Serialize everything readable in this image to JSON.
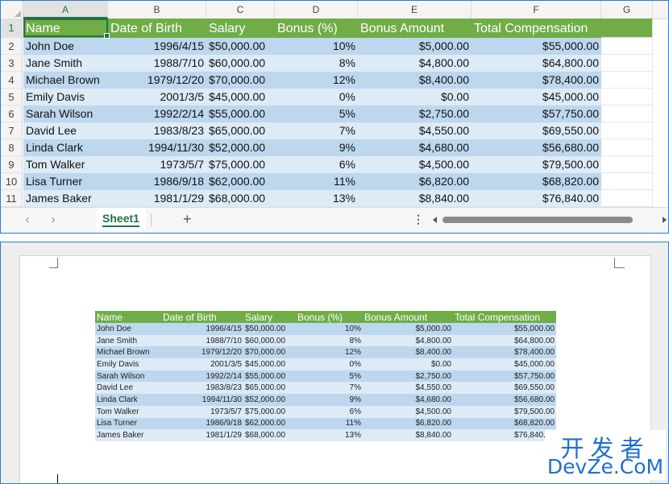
{
  "excel": {
    "columns": [
      "A",
      "B",
      "C",
      "D",
      "E",
      "F",
      "G"
    ],
    "rows": [
      "1",
      "2",
      "3",
      "4",
      "5",
      "6",
      "7",
      "8",
      "9",
      "10",
      "11"
    ],
    "headers": [
      "Name",
      "Date of Birth",
      "Salary",
      "Bonus (%)",
      "Bonus Amount",
      "Total Compensation"
    ],
    "data": [
      [
        "John Doe",
        "1996/4/15",
        "$50,000.00",
        "10%",
        "$5,000.00",
        "$55,000.00"
      ],
      [
        "Jane Smith",
        "1988/7/10",
        "$60,000.00",
        "8%",
        "$4,800.00",
        "$64,800.00"
      ],
      [
        "Michael Brown",
        "1979/12/20",
        "$70,000.00",
        "12%",
        "$8,400.00",
        "$78,400.00"
      ],
      [
        "Emily Davis",
        "2001/3/5",
        "$45,000.00",
        "0%",
        "$0.00",
        "$45,000.00"
      ],
      [
        "Sarah Wilson",
        "1992/2/14",
        "$55,000.00",
        "5%",
        "$2,750.00",
        "$57,750.00"
      ],
      [
        "David Lee",
        "1983/8/23",
        "$65,000.00",
        "7%",
        "$4,550.00",
        "$69,550.00"
      ],
      [
        "Linda Clark",
        "1994/11/30",
        "$52,000.00",
        "9%",
        "$4,680.00",
        "$56,680.00"
      ],
      [
        "Tom Walker",
        "1973/5/7",
        "$75,000.00",
        "6%",
        "$4,500.00",
        "$79,500.00"
      ],
      [
        "Lisa Turner",
        "1986/9/18",
        "$62,000.00",
        "11%",
        "$6,820.00",
        "$68,820.00"
      ],
      [
        "James Baker",
        "1981/1/29",
        "$68,000.00",
        "13%",
        "$8,840.00",
        "$76,840.00"
      ]
    ],
    "sheet_tab": "Sheet1",
    "add_sheet": "+",
    "nav_prev": "‹",
    "nav_next": "›",
    "more": "⋮"
  },
  "watermark": {
    "line1": "开发者",
    "line2": "DevZe.CoM"
  },
  "colors": {
    "header_green": "#70ad47",
    "band_dark": "#bdd7ee",
    "band_light": "#ddebf7",
    "excel_accent": "#217346"
  }
}
